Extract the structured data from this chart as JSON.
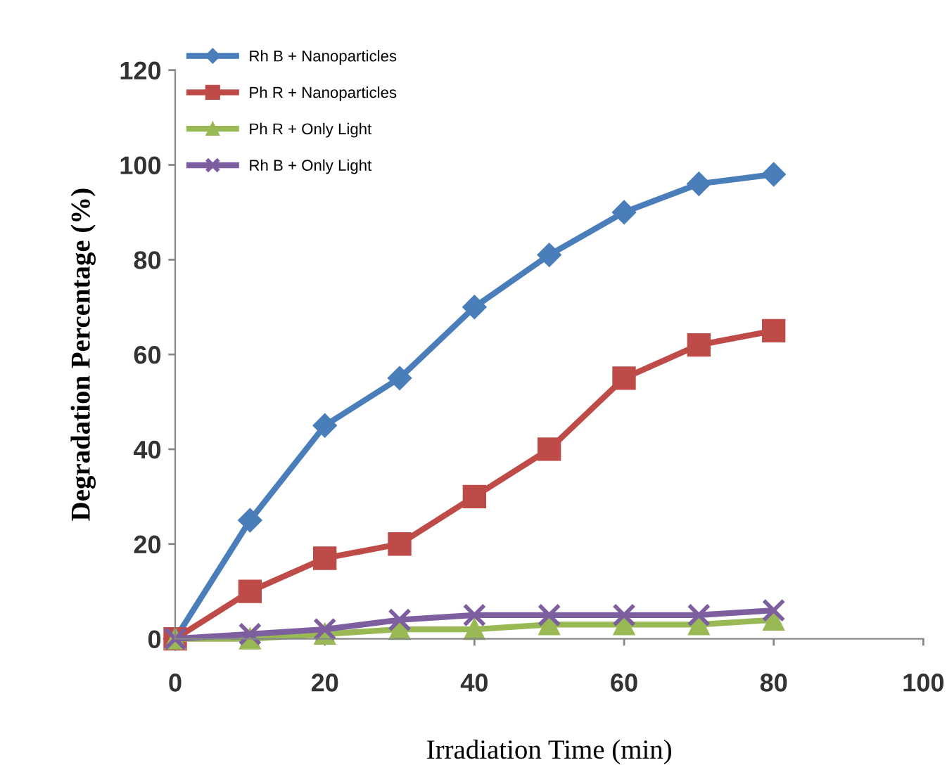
{
  "chart_data": {
    "type": "line",
    "xlabel": "Irradiation Time (min)",
    "ylabel": "Degradation Percentage (%)",
    "x": [
      0,
      10,
      20,
      30,
      40,
      50,
      60,
      70,
      80
    ],
    "series": [
      {
        "name": "Rh B + Nanoparticles",
        "color": "#4a7ebb",
        "marker": "diamond",
        "values": [
          0,
          25,
          45,
          55,
          70,
          81,
          90,
          96,
          98
        ]
      },
      {
        "name": "Ph R + Nanoparticles",
        "color": "#be4b48",
        "marker": "square",
        "values": [
          0,
          10,
          17,
          20,
          30,
          40,
          55,
          62,
          65
        ]
      },
      {
        "name": "Ph R + Only Light",
        "color": "#98b954",
        "marker": "triangle",
        "values": [
          0,
          0,
          1,
          2,
          2,
          3,
          3,
          3,
          4
        ]
      },
      {
        "name": "Rh B + Only Light",
        "color": "#7d5fa0",
        "marker": "cross",
        "values": [
          0,
          1,
          2,
          4,
          5,
          5,
          5,
          5,
          6
        ]
      }
    ],
    "xlim": [
      0,
      100
    ],
    "xticks": [
      0,
      20,
      40,
      60,
      80,
      100
    ],
    "ylim": [
      0,
      120
    ],
    "yticks": [
      0,
      20,
      40,
      60,
      80,
      100,
      120
    ],
    "grid": false,
    "legend": "top left",
    "line_style": "solid"
  }
}
